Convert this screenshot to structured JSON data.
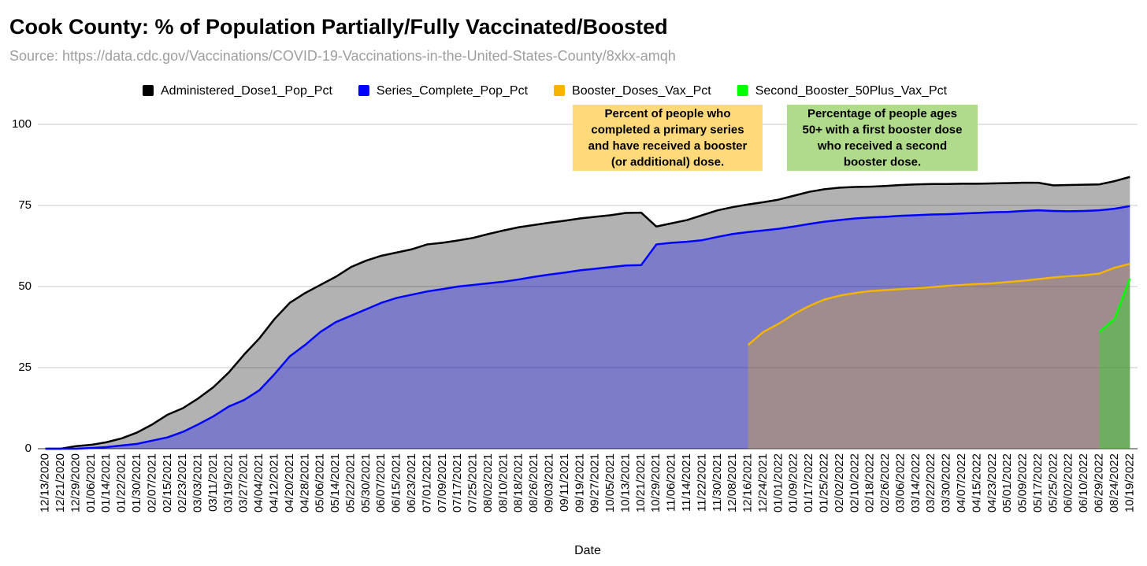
{
  "chart_data": {
    "type": "area",
    "title": "Cook County: % of Population Partially/Fully Vaccinated/Boosted",
    "subtitle": "Source: https://data.cdc.gov/Vaccinations/COVID-19-Vaccinations-in-the-United-States-County/8xkx-amqh",
    "x_label": "Date",
    "categories": [
      "12/13/2020",
      "12/21/2020",
      "12/29/2020",
      "01/06/2021",
      "01/14/2021",
      "01/22/2021",
      "01/30/2021",
      "02/07/2021",
      "02/15/2021",
      "02/23/2021",
      "03/03/2021",
      "03/11/2021",
      "03/19/2021",
      "03/27/2021",
      "04/04/2021",
      "04/12/2021",
      "04/20/2021",
      "04/28/2021",
      "05/06/2021",
      "05/14/2021",
      "05/22/2021",
      "05/30/2021",
      "06/07/2021",
      "06/15/2021",
      "06/23/2021",
      "07/01/2021",
      "07/09/2021",
      "07/17/2021",
      "07/25/2021",
      "08/02/2021",
      "08/10/2021",
      "08/18/2021",
      "08/26/2021",
      "09/03/2021",
      "09/11/2021",
      "09/19/2021",
      "09/27/2021",
      "10/05/2021",
      "10/13/2021",
      "10/21/2021",
      "10/29/2021",
      "11/06/2021",
      "11/14/2021",
      "11/22/2021",
      "11/30/2021",
      "12/08/2021",
      "12/16/2021",
      "12/24/2021",
      "01/01/2022",
      "01/09/2022",
      "01/17/2022",
      "01/25/2022",
      "02/02/2022",
      "02/10/2022",
      "02/18/2022",
      "02/26/2022",
      "03/06/2022",
      "03/14/2022",
      "03/22/2022",
      "03/30/2022",
      "04/07/2022",
      "04/15/2022",
      "04/23/2022",
      "05/01/2022",
      "05/09/2022",
      "05/17/2022",
      "05/25/2022",
      "06/02/2022",
      "06/10/2022",
      "06/29/2022",
      "08/24/2022",
      "10/19/2022"
    ],
    "series": [
      {
        "name": "Administered_Dose1_Pop_Pct",
        "color": "#000000",
        "values": [
          0,
          0,
          0.8,
          1.2,
          2,
          3.2,
          5,
          7.5,
          10.5,
          12.5,
          15.5,
          19,
          23.5,
          29,
          34,
          40,
          45,
          48,
          50.5,
          53,
          56,
          58,
          59.5,
          60.5,
          61.5,
          63,
          63.5,
          64.2,
          65,
          66.2,
          67.3,
          68.3,
          69,
          69.7,
          70.3,
          71,
          71.5,
          72,
          72.7,
          72.8,
          68.5,
          69.5,
          70.5,
          72,
          73.5,
          74.5,
          75.3,
          76,
          76.8,
          78,
          79.2,
          80,
          80.5,
          80.7,
          80.8,
          81,
          81.3,
          81.5,
          81.6,
          81.6,
          81.7,
          81.7,
          81.8,
          81.9,
          82,
          82,
          81.2,
          81.3,
          81.4,
          81.5,
          82.5,
          83.8
        ]
      },
      {
        "name": "Series_Complete_Pop_Pct",
        "color": "#0000ff",
        "values": [
          0,
          0,
          0,
          0.2,
          0.5,
          1,
          1.5,
          2.5,
          3.5,
          5.2,
          7.5,
          10,
          13,
          15,
          18,
          23,
          28.5,
          32,
          36,
          39,
          41,
          43,
          45,
          46.5,
          47.5,
          48.5,
          49.2,
          50,
          50.5,
          51,
          51.5,
          52.2,
          53,
          53.7,
          54.3,
          55,
          55.5,
          56,
          56.5,
          56.6,
          63,
          63.5,
          63.8,
          64.3,
          65.3,
          66.2,
          66.8,
          67.3,
          67.8,
          68.5,
          69.3,
          70,
          70.5,
          71,
          71.3,
          71.5,
          71.8,
          72,
          72.2,
          72.3,
          72.5,
          72.7,
          72.9,
          73,
          73.3,
          73.5,
          73.3,
          73.2,
          73.3,
          73.5,
          74,
          74.8
        ]
      },
      {
        "name": "Booster_Doses_Vax_Pct",
        "color": "#f4b400",
        "values": [
          null,
          null,
          null,
          null,
          null,
          null,
          null,
          null,
          null,
          null,
          null,
          null,
          null,
          null,
          null,
          null,
          null,
          null,
          null,
          null,
          null,
          null,
          null,
          null,
          null,
          null,
          null,
          null,
          null,
          null,
          null,
          null,
          null,
          null,
          null,
          null,
          null,
          null,
          null,
          null,
          null,
          null,
          null,
          null,
          null,
          null,
          32,
          36,
          38.5,
          41.5,
          44,
          46,
          47.2,
          48,
          48.6,
          48.9,
          49.2,
          49.5,
          49.8,
          50.2,
          50.5,
          50.8,
          51,
          51.4,
          51.8,
          52.3,
          52.8,
          53.2,
          53.5,
          54,
          55.8,
          57
        ]
      },
      {
        "name": "Second_Booster_50Plus_Vax_Pct",
        "color": "#00ff00",
        "values": [
          null,
          null,
          null,
          null,
          null,
          null,
          null,
          null,
          null,
          null,
          null,
          null,
          null,
          null,
          null,
          null,
          null,
          null,
          null,
          null,
          null,
          null,
          null,
          null,
          null,
          null,
          null,
          null,
          null,
          null,
          null,
          null,
          null,
          null,
          null,
          null,
          null,
          null,
          null,
          null,
          null,
          null,
          null,
          null,
          null,
          null,
          null,
          null,
          null,
          null,
          null,
          null,
          null,
          null,
          null,
          null,
          null,
          null,
          null,
          null,
          null,
          null,
          null,
          null,
          null,
          null,
          null,
          null,
          null,
          36,
          40,
          52.5
        ]
      }
    ],
    "ylim": [
      0,
      100
    ],
    "yticks": [
      0,
      25,
      50,
      75,
      100
    ],
    "grid": true,
    "legend": "top",
    "annotations": [
      {
        "lines": [
          "Percent of people who",
          "completed a primary series",
          "and have received a booster",
          "(or additional) dose."
        ],
        "color": "#ffd97a"
      },
      {
        "lines": [
          "Percentage of people ages",
          "50+ with a first booster dose",
          "who received a second",
          "booster dose."
        ],
        "color": "#b0db8a"
      }
    ]
  }
}
